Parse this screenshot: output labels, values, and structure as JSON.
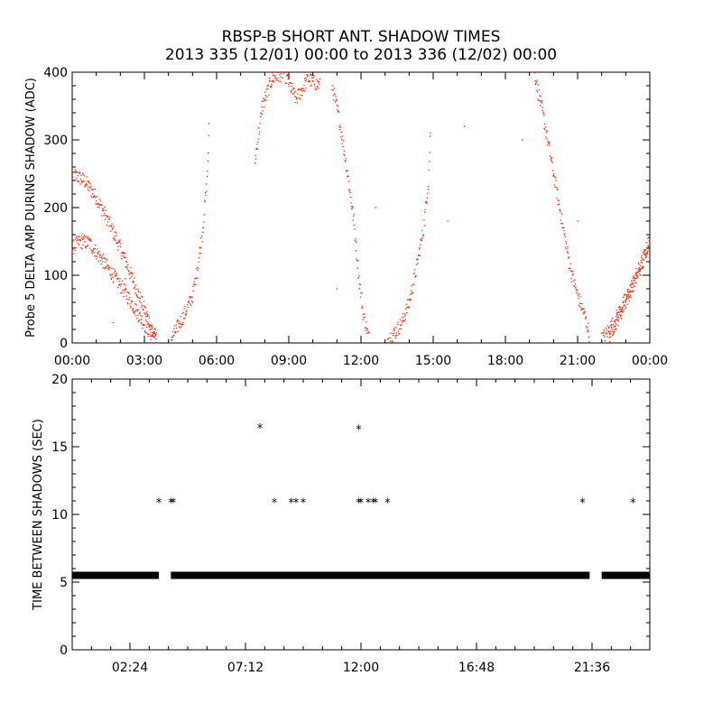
{
  "title_line1": "RBSP-B SHORT ANT. SHADOW TIMES",
  "title_line2": "2013 335 (12/01) 00:00 to 2013 336 (12/02) 00:00",
  "colors": {
    "top_points": "#ff2200",
    "bottom_points": "#000000",
    "axes": "#000000"
  },
  "chart_data": [
    {
      "type": "scatter",
      "ylabel": "Probe 5 DELTA AMP DURING SHADOW (ADC)",
      "xlabel": "",
      "x_units": "hours since 2013-12-01 00:00",
      "xlim": [
        0,
        24
      ],
      "ylim": [
        0,
        400
      ],
      "x_ticks": [
        0,
        3,
        6,
        9,
        12,
        15,
        18,
        21,
        24
      ],
      "x_tick_labels": [
        "00:00",
        "03:00",
        "06:00",
        "09:00",
        "12:00",
        "15:00",
        "18:00",
        "21:00",
        "00:00"
      ],
      "y_ticks": [
        0,
        100,
        200,
        300,
        400
      ],
      "y_tick_labels": [
        "0",
        "100",
        "200",
        "300",
        "400"
      ],
      "series": [
        {
          "name": "",
          "segments": [
            {
              "x": [
                0.0,
                0.5,
                1.0,
                1.5,
                2.0,
                2.5,
                3.0,
                3.3,
                3.55
              ],
              "y": [
                250,
                240,
                215,
                180,
                140,
                95,
                50,
                22,
                3
              ]
            },
            {
              "x": [
                0.0,
                0.3,
                0.7,
                1.2,
                1.7,
                2.2,
                2.7,
                3.1,
                3.5
              ],
              "y": [
                140,
                150,
                148,
                125,
                100,
                75,
                45,
                22,
                3
              ]
            },
            {
              "x": [
                4.1,
                4.4,
                4.7,
                5.0,
                5.2,
                5.4,
                5.6,
                5.7
              ],
              "y": [
                5,
                25,
                45,
                70,
                110,
                160,
                240,
                330
              ]
            },
            {
              "x": [
                7.6,
                7.9,
                8.3,
                8.8,
                9.3,
                9.8,
                10.3
              ],
              "y": [
                270,
                350,
                390,
                400,
                360,
                390,
                380
              ]
            },
            {
              "x": [
                10.8,
                11.1,
                11.4,
                11.7,
                11.9,
                12.1,
                12.35
              ],
              "y": [
                380,
                330,
                260,
                180,
                100,
                40,
                5
              ]
            },
            {
              "x": [
                13.1,
                13.4,
                13.7,
                14.0,
                14.3,
                14.6,
                14.8,
                14.9
              ],
              "y": [
                5,
                15,
                30,
                60,
                110,
                170,
                240,
                330
              ]
            },
            {
              "x": [
                19.2,
                19.6,
                20.0,
                20.4,
                20.7,
                21.0,
                21.3,
                21.5
              ],
              "y": [
                400,
                330,
                250,
                170,
                110,
                70,
                40,
                10
              ]
            },
            {
              "x": [
                22.0,
                22.5,
                23.0,
                23.5,
                24.0
              ],
              "y": [
                5,
                30,
                65,
                105,
                150
              ]
            },
            {
              "x": [
                22.3,
                22.8,
                23.3,
                23.8,
                24.0
              ],
              "y": [
                10,
                45,
                85,
                125,
                165
              ]
            }
          ],
          "isolated": [
            {
              "x": 2.2,
              "y": 95
            },
            {
              "x": 1.7,
              "y": 30
            },
            {
              "x": 8.2,
              "y": 400
            },
            {
              "x": 11.0,
              "y": 80
            },
            {
              "x": 12.6,
              "y": 200
            },
            {
              "x": 15.6,
              "y": 180
            },
            {
              "x": 16.3,
              "y": 320
            },
            {
              "x": 18.7,
              "y": 300
            },
            {
              "x": 21.0,
              "y": 180
            },
            {
              "x": 10.5,
              "y": 400
            }
          ]
        }
      ]
    },
    {
      "type": "scatter",
      "ylabel": "TIME BETWEEN SHADOWS (SEC)",
      "xlabel": "",
      "x_units": "hours since 2013-12-01 00:00",
      "xlim": [
        0,
        24
      ],
      "ylim": [
        0,
        20
      ],
      "x_ticks": [
        2.4,
        7.2,
        12.0,
        16.8,
        21.6
      ],
      "x_tick_labels": [
        "02:24",
        "07:12",
        "12:00",
        "16:48",
        "21:36"
      ],
      "y_ticks": [
        0,
        5,
        10,
        15,
        20
      ],
      "y_tick_labels": [
        "0",
        "5",
        "10",
        "15",
        "20"
      ],
      "series": [
        {
          "name": "",
          "baseline_value": 5.5,
          "baseline_ranges": [
            [
              0.0,
              3.6
            ],
            [
              4.1,
              21.5
            ],
            [
              22.0,
              24.0
            ]
          ],
          "points": [
            {
              "x": 3.6,
              "y": 10.9
            },
            {
              "x": 4.1,
              "y": 10.9
            },
            {
              "x": 4.2,
              "y": 10.9
            },
            {
              "x": 7.8,
              "y": 16.4
            },
            {
              "x": 8.4,
              "y": 10.9
            },
            {
              "x": 9.1,
              "y": 10.9
            },
            {
              "x": 9.3,
              "y": 10.9
            },
            {
              "x": 9.6,
              "y": 10.9
            },
            {
              "x": 11.9,
              "y": 16.3
            },
            {
              "x": 11.9,
              "y": 10.9
            },
            {
              "x": 12.0,
              "y": 10.9
            },
            {
              "x": 12.3,
              "y": 10.9
            },
            {
              "x": 12.5,
              "y": 10.9
            },
            {
              "x": 12.6,
              "y": 10.9
            },
            {
              "x": 13.1,
              "y": 10.9
            },
            {
              "x": 21.2,
              "y": 10.9
            },
            {
              "x": 23.3,
              "y": 10.9
            }
          ]
        }
      ]
    }
  ]
}
